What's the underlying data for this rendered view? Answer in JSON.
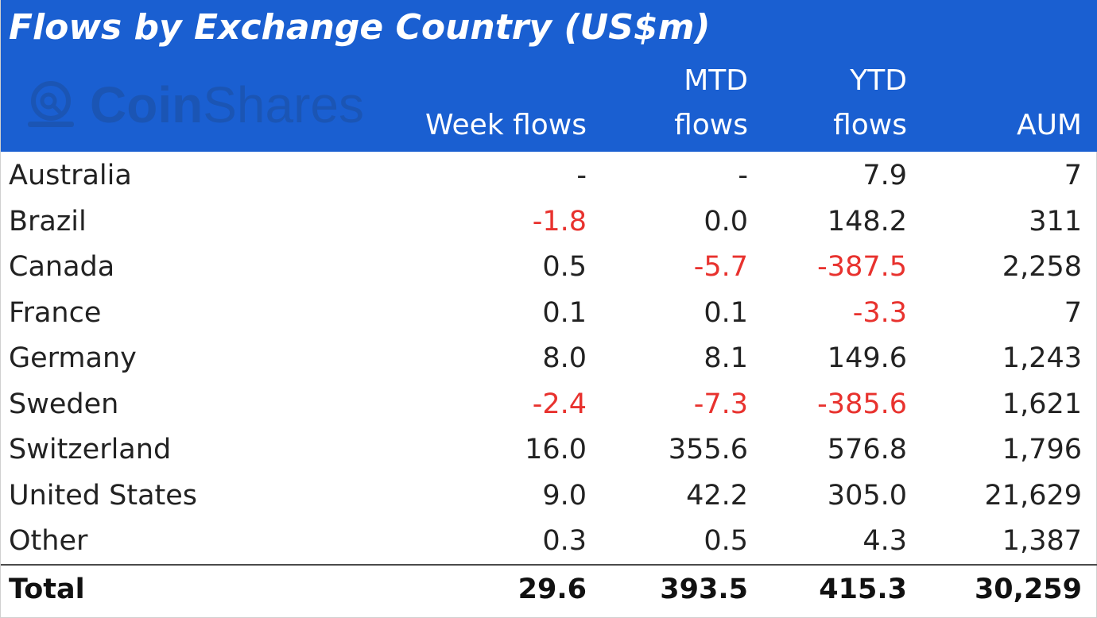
{
  "chart_data": {
    "type": "table",
    "title": "Flows by Exchange Country (US$m)",
    "watermark": {
      "brand_bold": "Coin",
      "brand_light": "Shares"
    },
    "columns": [
      {
        "key": "week",
        "line1": "",
        "line2": "Week flows"
      },
      {
        "key": "mtd",
        "line1": "MTD",
        "line2": "flows"
      },
      {
        "key": "ytd",
        "line1": "YTD",
        "line2": "flows"
      },
      {
        "key": "aum",
        "line1": "",
        "line2": "AUM"
      }
    ],
    "rows": [
      {
        "country": "Australia",
        "week": "-",
        "mtd": "-",
        "ytd": "7.9",
        "aum": "7"
      },
      {
        "country": "Brazil",
        "week": "-1.8",
        "mtd": "0.0",
        "ytd": "148.2",
        "aum": "311"
      },
      {
        "country": "Canada",
        "week": "0.5",
        "mtd": "-5.7",
        "ytd": "-387.5",
        "aum": "2,258"
      },
      {
        "country": "France",
        "week": "0.1",
        "mtd": "0.1",
        "ytd": "-3.3",
        "aum": "7"
      },
      {
        "country": "Germany",
        "week": "8.0",
        "mtd": "8.1",
        "ytd": "149.6",
        "aum": "1,243"
      },
      {
        "country": "Sweden",
        "week": "-2.4",
        "mtd": "-7.3",
        "ytd": "-385.6",
        "aum": "1,621"
      },
      {
        "country": "Switzerland",
        "week": "16.0",
        "mtd": "355.6",
        "ytd": "576.8",
        "aum": "1,796"
      },
      {
        "country": "United States",
        "week": "9.0",
        "mtd": "42.2",
        "ytd": "305.0",
        "aum": "21,629"
      },
      {
        "country": "Other",
        "week": "0.3",
        "mtd": "0.5",
        "ytd": "4.3",
        "aum": "1,387"
      }
    ],
    "total": {
      "country": "Total",
      "week": "29.6",
      "mtd": "393.5",
      "ytd": "415.3",
      "aum": "30,259"
    }
  },
  "colors": {
    "header_bg": "#1a5fd1",
    "header_text": "#ffffff",
    "negative": "#e8322e",
    "text": "#222222",
    "watermark": "#1d4d9e"
  }
}
